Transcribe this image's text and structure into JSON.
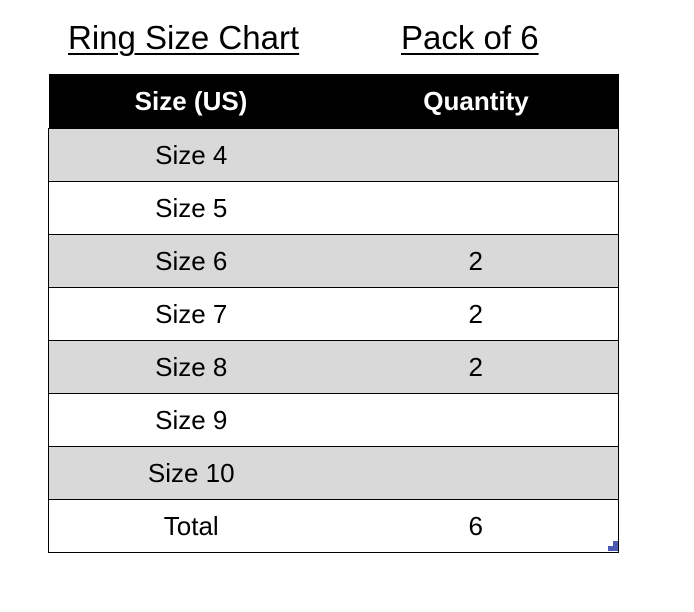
{
  "titles": {
    "chart": "Ring Size Chart",
    "pack": "Pack of 6"
  },
  "table": {
    "headers": [
      "Size (US)",
      "Quantity"
    ],
    "rows": [
      {
        "size": "Size 4",
        "qty": ""
      },
      {
        "size": "Size 5",
        "qty": ""
      },
      {
        "size": "Size 6",
        "qty": "2"
      },
      {
        "size": "Size 7",
        "qty": "2"
      },
      {
        "size": "Size 8",
        "qty": "2"
      },
      {
        "size": "Size 9",
        "qty": ""
      },
      {
        "size": "Size 10",
        "qty": ""
      }
    ],
    "total": {
      "label": "Total",
      "qty": "6"
    }
  },
  "colors": {
    "header_bg": "#000000",
    "stripe": "#d9d9d9",
    "handle": "#4a5ab4"
  }
}
